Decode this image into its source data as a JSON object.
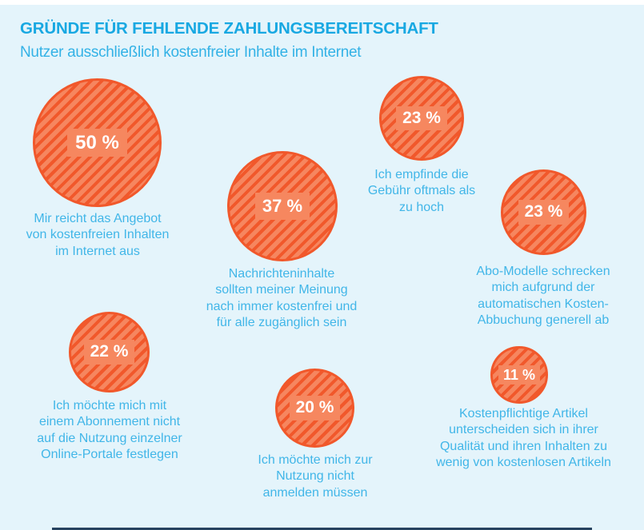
{
  "header": {
    "title": "GRÜNDE FÜR FEHLENDE ZAHLUNGSBEREITSCHAFT",
    "subtitle": "Nutzer ausschließlich kostenfreier Inhalte im Internet"
  },
  "chart_data": {
    "type": "bubble",
    "title": "GRÜNDE FÜR FEHLENDE ZAHLUNGSBEREITSCHAFT",
    "subtitle": "Nutzer ausschließlich kostenfreier Inhalte im Internet",
    "unit": "percent",
    "values": [
      50,
      37,
      23,
      23,
      22,
      20,
      11
    ],
    "layout_hint": "bubble size proportional to value; free-form arrangement, caption below each bubble",
    "points": [
      {
        "value": 50,
        "value_label": "50 %",
        "label": "Mir reicht das Angebot\nvon kostenfreien Inhalten\nim Internet aus"
      },
      {
        "value": 37,
        "value_label": "37 %",
        "label": "Nachrichteninhalte\nsollten meiner Meinung\nnach immer kostenfrei und\nfür alle zugänglich sein"
      },
      {
        "value": 23,
        "value_label": "23 %",
        "label": "Ich empfinde die\nGebühr oftmals als\nzu hoch"
      },
      {
        "value": 23,
        "value_label": "23 %",
        "label": "Abo-Modelle schrecken\nmich aufgrund der\nautomatischen Kosten-\nAbbuchung generell ab"
      },
      {
        "value": 22,
        "value_label": "22 %",
        "label": "Ich möchte mich mit\neinem Abonnement nicht\nauf die Nutzung einzelner\nOnline-Portale festlegen"
      },
      {
        "value": 20,
        "value_label": "20 %",
        "label": "Ich möchte mich zur\nNutzung nicht\nanmelden müssen"
      },
      {
        "value": 11,
        "value_label": "11 %",
        "label": "Kostenpflichtige Artikel\nunterscheiden sich in ihrer\nQualität und ihren Inhalten zu\nwenig von kostenlosen Artikeln"
      }
    ],
    "colors": {
      "background": "#e4f4fb",
      "title": "#18a8e2",
      "subtitle": "#33b2e6",
      "caption": "#41b6e8",
      "bubble_fill": "#f6865f",
      "bubble_stripe": "#f1582b",
      "bubble_border": "#f1582b",
      "badge_background": "#f6875f",
      "badge_text": "#ffffff",
      "footer_bar": "#26425f",
      "top_strip": "#ffffff"
    }
  }
}
